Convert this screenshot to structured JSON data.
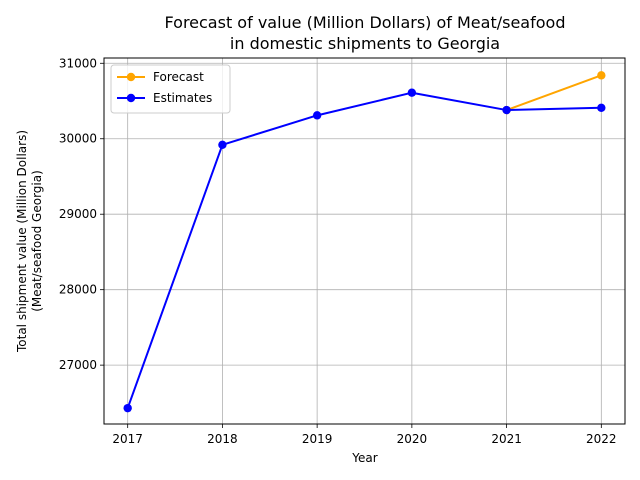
{
  "chart_data": {
    "type": "line",
    "title_lines": [
      "Forecast of value (Million Dollars) of Meat/seafood",
      "in domestic shipments to Georgia"
    ],
    "xlabel": "Year",
    "ylabel_lines": [
      "Total shipment value (Million Dollars)",
      "(Meat/seafood Georgia)"
    ],
    "x": [
      2017,
      2018,
      2019,
      2020,
      2021,
      2022
    ],
    "xlim": [
      2016.75,
      2022.25
    ],
    "ylim": [
      26220,
      31070
    ],
    "yticks": [
      27000,
      28000,
      29000,
      30000,
      31000
    ],
    "grid": true,
    "legend_position": "top-left",
    "series": [
      {
        "name": "Forecast",
        "color": "#ffa500",
        "points": [
          [
            2021,
            30380
          ],
          [
            2022,
            30840
          ]
        ]
      },
      {
        "name": "Estimates",
        "color": "#0000ff",
        "points": [
          [
            2017,
            26430
          ],
          [
            2018,
            29920
          ],
          [
            2019,
            30310
          ],
          [
            2020,
            30610
          ],
          [
            2021,
            30380
          ],
          [
            2022,
            30410
          ]
        ]
      }
    ]
  }
}
